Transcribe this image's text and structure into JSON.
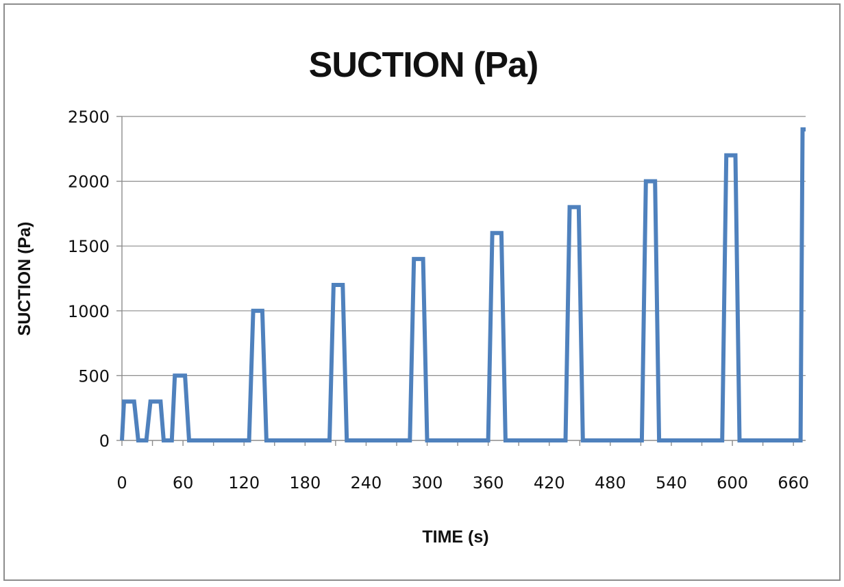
{
  "colors": {
    "series": "#4f81bd",
    "frame": "#8c8c8c",
    "gridline": "#8c8c8c",
    "background": "#ffffff"
  },
  "chart_data": {
    "type": "line",
    "title": "SUCTION (Pa)",
    "xlabel": "TIME (s)",
    "ylabel": "SUCTION (Pa)",
    "xlim": [
      0,
      672
    ],
    "ylim": [
      0,
      2500
    ],
    "x_ticks": [
      0,
      60,
      120,
      180,
      240,
      300,
      360,
      420,
      480,
      540,
      600,
      660
    ],
    "x_tick_labels": [
      "0",
      "60",
      "120",
      "180",
      "240",
      "300",
      "360",
      "420",
      "480",
      "540",
      "600",
      "660"
    ],
    "y_ticks": [
      0,
      500,
      1000,
      1500,
      2000,
      2500
    ],
    "y_tick_labels": [
      "0",
      "500",
      "1000",
      "1500",
      "2000",
      "2500"
    ],
    "grid": "horizontal",
    "legend": "none",
    "series": [
      {
        "x": [
          0,
          2,
          12,
          16,
          24,
          28,
          38,
          41,
          49,
          52,
          62,
          66,
          125,
          129,
          138,
          142,
          204,
          208,
          217,
          221,
          283,
          287,
          296,
          300,
          360,
          364,
          373,
          377,
          436,
          440,
          449,
          453,
          511,
          515,
          524,
          528,
          590,
          594,
          603,
          607,
          667,
          669,
          672
        ],
        "y": [
          0,
          300,
          300,
          0,
          0,
          300,
          300,
          0,
          0,
          500,
          500,
          0,
          0,
          1000,
          1000,
          0,
          0,
          1200,
          1200,
          0,
          0,
          1400,
          1400,
          0,
          0,
          1600,
          1600,
          0,
          0,
          1800,
          1800,
          0,
          0,
          2000,
          2000,
          0,
          0,
          2200,
          2200,
          0,
          0,
          2400,
          2400
        ]
      }
    ]
  }
}
